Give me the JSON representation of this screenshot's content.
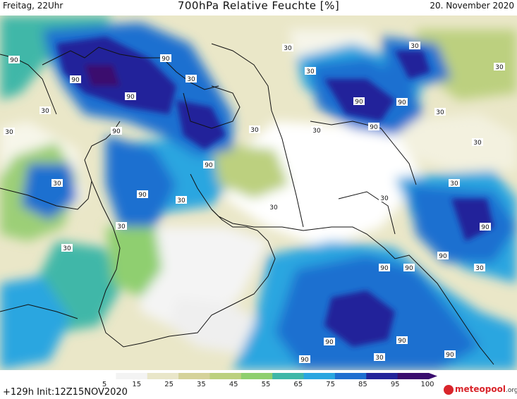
{
  "header": {
    "day_time": "Freitag, 22Uhr",
    "title": "700hPa Relative Feuchte [%]",
    "date": "20. November 2020"
  },
  "map": {
    "variable": "relative humidity",
    "level": "700hPa",
    "contour_labels": {
      "high": "90",
      "low": "30"
    }
  },
  "colorbar": {
    "ticks": [
      "5",
      "15",
      "25",
      "35",
      "45",
      "55",
      "65",
      "75",
      "85",
      "95",
      "100"
    ],
    "colors": [
      "#ffffff",
      "#f3f3f3",
      "#e9e6c9",
      "#d5d29a",
      "#bcd07f",
      "#8fcf6f",
      "#3fb7a8",
      "#2aa6e0",
      "#1f6fd0",
      "#23249a",
      "#3a0d6e"
    ]
  },
  "footer": {
    "run_info": "+129h Init:12Z15NOV2020",
    "logo_text": "meteopool",
    "logo_suffix": ".org"
  }
}
